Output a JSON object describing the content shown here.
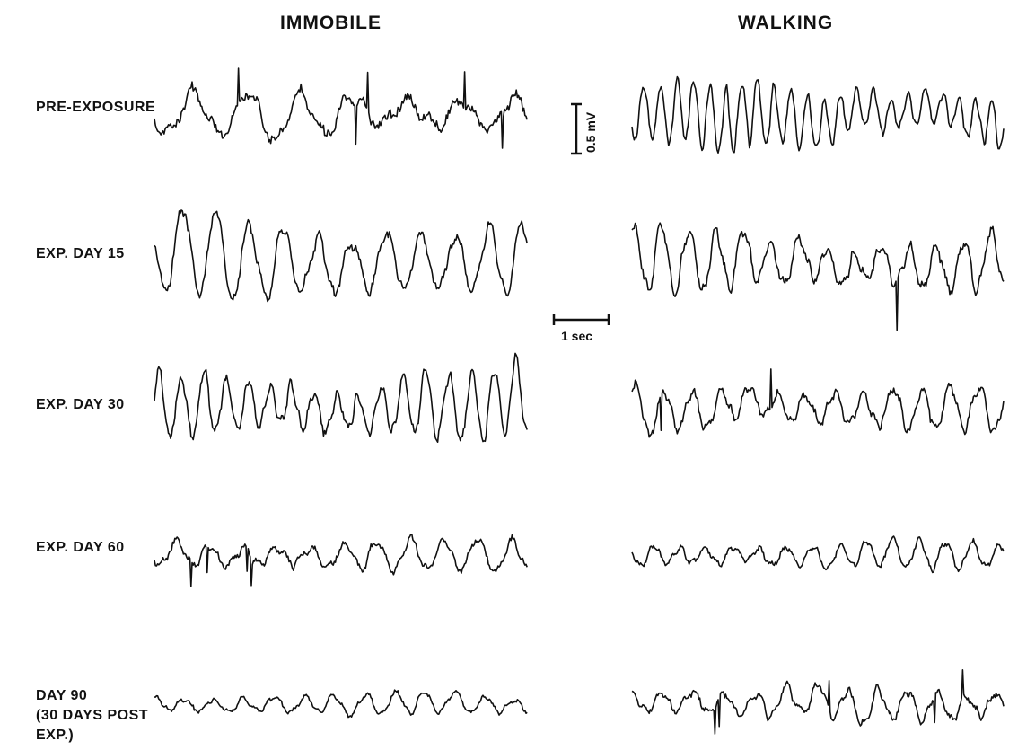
{
  "columns": {
    "immobile": "IMMOBILE",
    "walking": "WALKING"
  },
  "rows": [
    {
      "label": "PRE-EXPOSURE",
      "immobile": {
        "amp": 26,
        "freq": 1.0,
        "jitter": 0.9,
        "spiky": true
      },
      "walking": {
        "amp": 36,
        "freq": 3.2,
        "jitter": 0.25,
        "spiky": false
      }
    },
    {
      "label": "EXP. DAY 15",
      "immobile": {
        "amp": 48,
        "freq": 1.6,
        "jitter": 0.35,
        "spiky": false
      },
      "walking": {
        "amp": 34,
        "freq": 2.0,
        "jitter": 0.6,
        "spiky": true
      }
    },
    {
      "label": "EXP. DAY 30",
      "immobile": {
        "amp": 40,
        "freq": 2.4,
        "jitter": 0.4,
        "spiky": false
      },
      "walking": {
        "amp": 26,
        "freq": 1.9,
        "jitter": 0.7,
        "spiky": true
      }
    },
    {
      "label": "EXP. DAY 60",
      "immobile": {
        "amp": 18,
        "freq": 1.6,
        "jitter": 0.8,
        "spiky": true
      },
      "walking": {
        "amp": 16,
        "freq": 2.0,
        "jitter": 0.6,
        "spiky": false
      }
    },
    {
      "label": "DAY 90\n(30 DAYS POST\n EXP.)",
      "immobile": {
        "amp": 12,
        "freq": 1.8,
        "jitter": 0.7,
        "spiky": false
      },
      "walking": {
        "amp": 18,
        "freq": 1.8,
        "jitter": 0.8,
        "spiky": true
      }
    }
  ],
  "scale_bars": {
    "voltage": "0.5 mV",
    "time": "1 sec"
  }
}
